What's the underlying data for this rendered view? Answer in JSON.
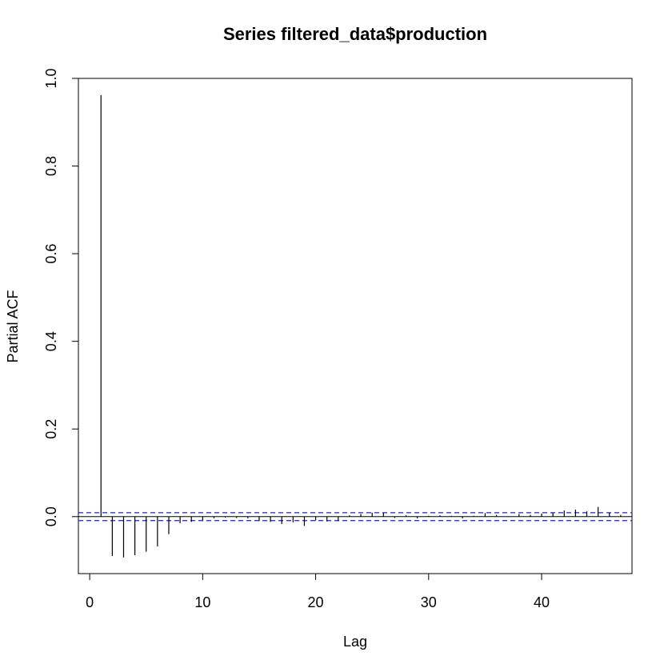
{
  "chart_data": {
    "type": "bar",
    "title": "Series  filtered_data$production",
    "xlabel": "Lag",
    "ylabel": "Partial ACF",
    "xlim": [
      -1,
      48
    ],
    "ylim": [
      -0.13,
      1.0
    ],
    "x_ticks": [
      0,
      10,
      20,
      30,
      40
    ],
    "x_tick_labels": [
      "0",
      "10",
      "20",
      "30",
      "40"
    ],
    "y_ticks": [
      0.0,
      0.2,
      0.4,
      0.6,
      0.8,
      1.0
    ],
    "y_tick_labels": [
      "0.0",
      "0.2",
      "0.4",
      "0.6",
      "0.8",
      "1.0"
    ],
    "confidence_bound": 0.009,
    "grid": false,
    "colors": {
      "spike": "#000000",
      "zero_line": "#000000",
      "bound": "#2020c8"
    },
    "lags": [
      1,
      2,
      3,
      4,
      5,
      6,
      7,
      8,
      9,
      10,
      11,
      12,
      13,
      14,
      15,
      16,
      17,
      18,
      19,
      20,
      21,
      22,
      23,
      24,
      25,
      26,
      27,
      28,
      29,
      30,
      31,
      32,
      33,
      34,
      35,
      36,
      37,
      38,
      39,
      40,
      41,
      42,
      43,
      44,
      45,
      46,
      47
    ],
    "values": [
      0.962,
      -0.09,
      -0.093,
      -0.088,
      -0.08,
      -0.068,
      -0.04,
      -0.015,
      -0.012,
      -0.009,
      -0.004,
      -0.002,
      -0.003,
      -0.004,
      -0.01,
      -0.012,
      -0.017,
      -0.013,
      -0.021,
      -0.009,
      -0.011,
      -0.01,
      0.003,
      0.006,
      0.009,
      0.008,
      -0.003,
      0.003,
      -0.004,
      0.002,
      0.003,
      0.002,
      -0.004,
      0.002,
      0.008,
      0.004,
      -0.001,
      0.006,
      0.004,
      0.007,
      0.008,
      0.014,
      0.016,
      0.012,
      0.022,
      0.009,
      0.004
    ]
  }
}
